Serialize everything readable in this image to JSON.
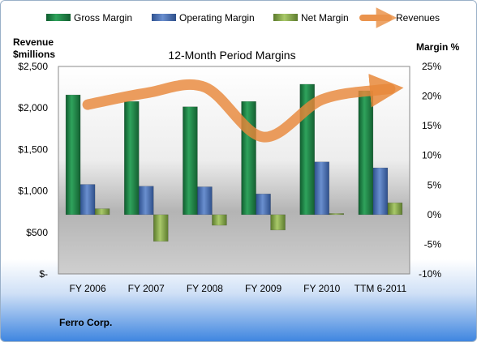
{
  "chart_data": {
    "type": "bar",
    "title": "12-Month Period Margins",
    "categories": [
      "FY 2006",
      "FY 2007",
      "FY 2008",
      "FY 2009",
      "FY 2010",
      "TTM 6-2011"
    ],
    "left_axis": {
      "label_line1": "Revenue",
      "label_line2": "$millions",
      "ticks": [
        "$2,500",
        "$2,000",
        "$1,500",
        "$1,000",
        "$500",
        "$-"
      ],
      "range": [
        0,
        2500
      ]
    },
    "right_axis": {
      "label": "Margin %",
      "ticks": [
        "25%",
        "20%",
        "15%",
        "10%",
        "5%",
        "0%",
        "-5%",
        "-10%"
      ],
      "range": [
        -10,
        25
      ]
    },
    "series": [
      {
        "name": "Gross Margin",
        "axis": "right",
        "color": "#1f8a4a",
        "values": [
          20.2,
          19.1,
          18.2,
          19.1,
          22.0,
          20.9
        ]
      },
      {
        "name": "Operating Margin",
        "axis": "right",
        "color": "#4f76b8",
        "values": [
          5.1,
          4.8,
          4.7,
          3.5,
          8.9,
          7.9
        ]
      },
      {
        "name": "Net Margin",
        "axis": "right",
        "color": "#8fb050",
        "values": [
          1.0,
          -4.5,
          -1.8,
          -2.6,
          0.2,
          2.0
        ]
      },
      {
        "name": "Revenues",
        "axis": "left",
        "type": "line",
        "color": "#e8883a",
        "values": [
          2040,
          2180,
          2250,
          1650,
          2100,
          2220
        ]
      }
    ],
    "legend_position": "top"
  },
  "footer": {
    "company": "Ferro Corp."
  }
}
